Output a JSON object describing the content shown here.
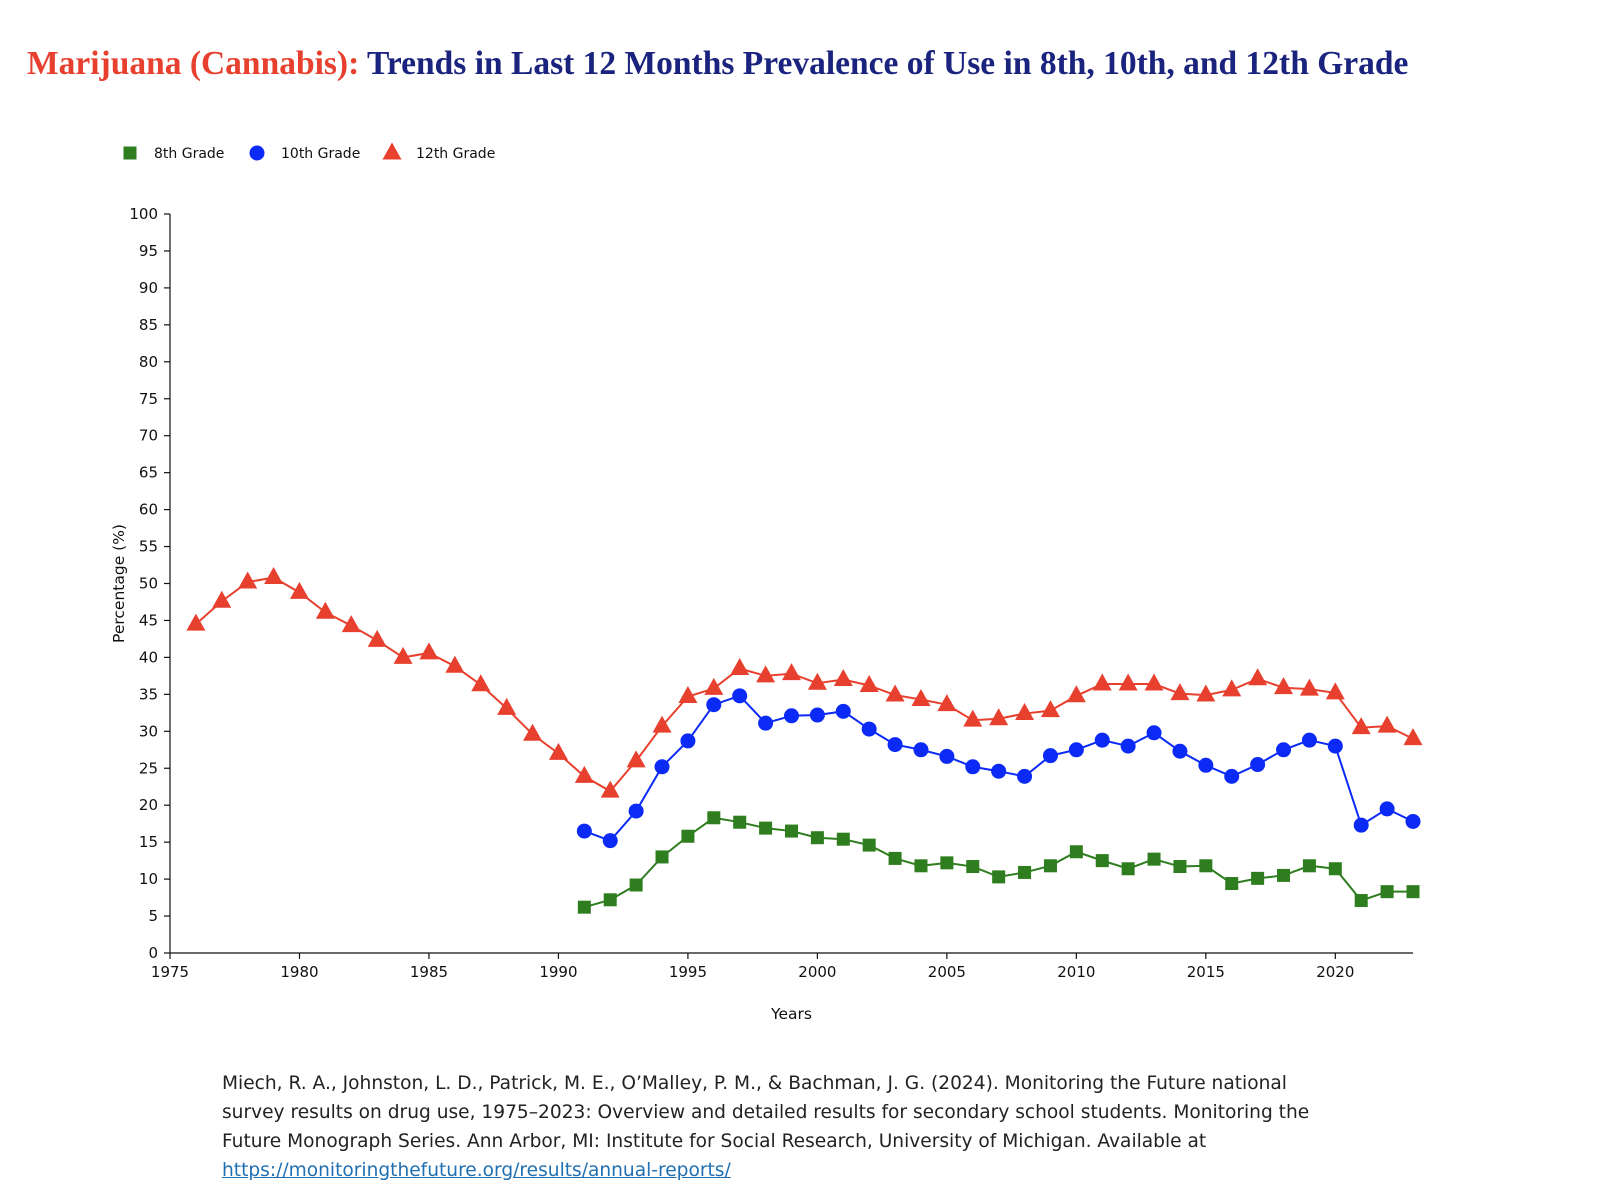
{
  "title": {
    "drug": "Marijuana (Cannabis):",
    "rest": "Trends in Last 12 Months Prevalence of Use in 8th, 10th, and 12th Grade"
  },
  "chart_data": {
    "type": "line",
    "xlabel": "Years",
    "ylabel": "Percentage (%)",
    "xlim": [
      1975,
      2023
    ],
    "ylim": [
      0,
      100
    ],
    "x_ticks": [
      1975,
      1980,
      1985,
      1990,
      1995,
      2000,
      2005,
      2010,
      2015,
      2020
    ],
    "y_ticks": [
      0,
      5,
      10,
      15,
      20,
      25,
      30,
      35,
      40,
      45,
      50,
      55,
      60,
      65,
      70,
      75,
      80,
      85,
      90,
      95,
      100
    ],
    "grid": false,
    "legend_position": "top-left",
    "series": [
      {
        "name": "8th Grade",
        "color": "#2e7d1e",
        "marker": "square",
        "x": [
          1991,
          1992,
          1993,
          1994,
          1995,
          1996,
          1997,
          1998,
          1999,
          2000,
          2001,
          2002,
          2003,
          2004,
          2005,
          2006,
          2007,
          2008,
          2009,
          2010,
          2011,
          2012,
          2013,
          2014,
          2015,
          2016,
          2017,
          2018,
          2019,
          2020,
          2021,
          2022,
          2023
        ],
        "values": [
          6.2,
          7.2,
          9.2,
          13.0,
          15.8,
          18.3,
          17.7,
          16.9,
          16.5,
          15.6,
          15.4,
          14.6,
          12.8,
          11.8,
          12.2,
          11.7,
          10.3,
          10.9,
          11.8,
          13.7,
          12.5,
          11.4,
          12.7,
          11.7,
          11.8,
          9.4,
          10.1,
          10.5,
          11.8,
          11.4,
          7.1,
          8.3,
          8.3
        ]
      },
      {
        "name": "10th Grade",
        "color": "#0b2af5",
        "marker": "circle",
        "x": [
          1991,
          1992,
          1993,
          1994,
          1995,
          1996,
          1997,
          1998,
          1999,
          2000,
          2001,
          2002,
          2003,
          2004,
          2005,
          2006,
          2007,
          2008,
          2009,
          2010,
          2011,
          2012,
          2013,
          2014,
          2015,
          2016,
          2017,
          2018,
          2019,
          2020,
          2021,
          2022,
          2023
        ],
        "values": [
          16.5,
          15.2,
          19.2,
          25.2,
          28.7,
          33.6,
          34.8,
          31.1,
          32.1,
          32.2,
          32.7,
          30.3,
          28.2,
          27.5,
          26.6,
          25.2,
          24.6,
          23.9,
          26.7,
          27.5,
          28.8,
          28.0,
          29.8,
          27.3,
          25.4,
          23.9,
          25.5,
          27.5,
          28.8,
          28.0,
          17.3,
          19.5,
          17.8
        ]
      },
      {
        "name": "12th Grade",
        "color": "#e8402f",
        "marker": "triangle",
        "x": [
          1976,
          1977,
          1978,
          1979,
          1980,
          1981,
          1982,
          1983,
          1984,
          1985,
          1986,
          1987,
          1988,
          1989,
          1990,
          1991,
          1992,
          1993,
          1994,
          1995,
          1996,
          1997,
          1998,
          1999,
          2000,
          2001,
          2002,
          2003,
          2004,
          2005,
          2006,
          2007,
          2008,
          2009,
          2010,
          2011,
          2012,
          2013,
          2014,
          2015,
          2016,
          2017,
          2018,
          2019,
          2020,
          2021,
          2022,
          2023
        ],
        "values": [
          44.5,
          47.6,
          50.2,
          50.8,
          48.8,
          46.1,
          44.3,
          42.3,
          40.0,
          40.6,
          38.8,
          36.3,
          33.1,
          29.6,
          27.0,
          23.9,
          21.9,
          26.0,
          30.7,
          34.7,
          35.8,
          38.5,
          37.5,
          37.8,
          36.5,
          37.0,
          36.2,
          34.9,
          34.3,
          33.6,
          31.5,
          31.7,
          32.4,
          32.8,
          34.8,
          36.4,
          36.4,
          36.4,
          35.1,
          34.9,
          35.6,
          37.1,
          35.9,
          35.7,
          35.2,
          30.5,
          30.7,
          29.0
        ]
      }
    ]
  },
  "citation": {
    "text": "Miech, R. A., Johnston, L. D., Patrick, M. E., O’Malley, P. M., & Bachman, J. G. (2024). Monitoring the Future national survey results on drug use, 1975–2023: Overview and detailed results for secondary school students. Monitoring the Future Monograph Series. Ann Arbor, MI: Institute for Social Research, University of Michigan. Available at",
    "link": "https://monitoringthefuture.org/results/annual-reports/"
  }
}
